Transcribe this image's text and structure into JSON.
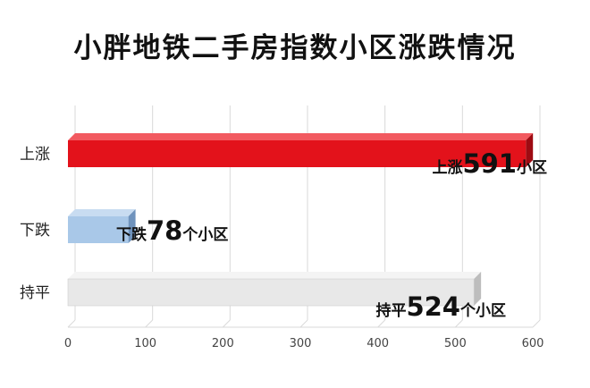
{
  "chart_data": {
    "type": "bar",
    "orientation": "horizontal",
    "title": "小胖地铁二手房指数小区涨跌情况",
    "categories": [
      "上涨",
      "下跌",
      "持平"
    ],
    "values": [
      591,
      78,
      524
    ],
    "bar_labels": [
      {
        "prefix": "上涨",
        "number": "591",
        "suffix": "小区"
      },
      {
        "prefix": "下跌",
        "number": "78",
        "suffix": "个小区"
      },
      {
        "prefix": "持平",
        "number": "524",
        "suffix": "个小区"
      }
    ],
    "xlim": [
      0,
      600
    ],
    "xticks": [
      "0",
      "100",
      "200",
      "300",
      "400",
      "500",
      "600"
    ],
    "grid": true,
    "colors": [
      "#e3121b",
      "#a9c8e8",
      "#e8e8e8"
    ],
    "side_colors": [
      "#9e0b12",
      "#6f93bd",
      "#bdbdbd"
    ],
    "top_colors": [
      "#f25a60",
      "#c8dcf1",
      "#f4f4f4"
    ]
  }
}
